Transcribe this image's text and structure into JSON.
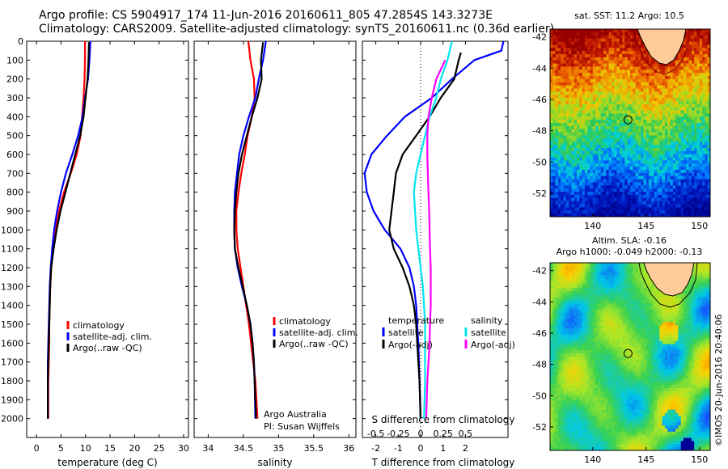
{
  "header": {
    "line1": "Argo profile: CS 5904917_174 11-Jun-2016 20160611_805 47.2854S 143.3273E",
    "line2": "Climatology: CARS2009. Satellite-adjusted climatology: synTS_20160611.nc (0.36d earlier)"
  },
  "colors": {
    "climatology": "#ff0000",
    "satellite": "#0000ff",
    "argo": "#000000",
    "salinity": "#00e5ee",
    "salinity_argo": "#ff00ff"
  },
  "annotations": {
    "argo_australia": "Argo Australia",
    "pi": "PI: Susan Wijffels",
    "imos": "©IMOS 20-Jun-2016 20:40:06",
    "sst_title": "sat. SST: 11.2 Argo: 10.5",
    "sla_title1": "Altim. SLA: -0.16",
    "sla_title2": "Argo h1000: -0.049 h2000: -0.13"
  },
  "chart_data": [
    {
      "type": "line",
      "xlabel": "temperature (deg C)",
      "ylim": [
        2100,
        0
      ],
      "xlim": [
        -2,
        31
      ],
      "xticks": [
        "0",
        "5",
        "10",
        "15",
        "20",
        "25",
        "30"
      ],
      "yticks": [
        "0",
        "100",
        "200",
        "300",
        "400",
        "500",
        "600",
        "700",
        "800",
        "900",
        "1000",
        "1100",
        "1200",
        "1300",
        "1400",
        "1500",
        "1600",
        "1700",
        "1800",
        "1900",
        "2000"
      ],
      "legend": [
        "climatology",
        "satellite-adj. clim.",
        "Argo(..raw -QC)"
      ],
      "series": [
        {
          "name": "climatology",
          "color": "#ff0000",
          "x": [
            9.9,
            9.9,
            9.8,
            9.6,
            9.3,
            9.0,
            8.2,
            7.0,
            5.6,
            4.6,
            3.9,
            3.4,
            3.0,
            2.8,
            2.7,
            2.6,
            2.6,
            2.5,
            2.4,
            2.4
          ],
          "y": [
            0,
            100,
            200,
            300,
            400,
            500,
            600,
            700,
            800,
            900,
            1000,
            1100,
            1200,
            1300,
            1400,
            1500,
            1600,
            1700,
            1800,
            2000
          ]
        },
        {
          "name": "satellite-adj. clim.",
          "color": "#0000ff",
          "x": [
            11.0,
            10.8,
            10.5,
            9.9,
            9.4,
            8.5,
            7.3,
            6.0,
            5.0,
            4.2,
            3.6,
            3.2,
            2.9,
            2.7,
            2.6,
            2.5,
            2.4,
            2.3,
            2.3,
            2.3
          ],
          "y": [
            0,
            100,
            200,
            300,
            400,
            500,
            600,
            700,
            800,
            900,
            1000,
            1100,
            1200,
            1300,
            1400,
            1500,
            1600,
            1700,
            1800,
            2000
          ]
        },
        {
          "name": "Argo(..raw -QC)",
          "color": "#000000",
          "x": [
            10.7,
            10.6,
            10.4,
            10.0,
            9.6,
            8.9,
            7.9,
            6.9,
            5.9,
            4.9,
            4.1,
            3.5,
            3.0,
            2.8,
            2.7,
            2.6,
            2.5,
            2.4,
            2.3,
            2.3
          ],
          "y": [
            5,
            100,
            200,
            300,
            400,
            500,
            600,
            700,
            800,
            900,
            1000,
            1100,
            1200,
            1300,
            1400,
            1500,
            1600,
            1700,
            1800,
            2000
          ]
        }
      ]
    },
    {
      "type": "line",
      "xlabel": "salinity",
      "ylim": [
        2100,
        0
      ],
      "xlim": [
        33.8,
        36.1
      ],
      "xticks": [
        "34",
        "34.5",
        "35",
        "35.5",
        "36"
      ],
      "legend": [
        "climatology",
        "satellite-adj. clim.",
        "Argo(..raw -QC)"
      ],
      "series": [
        {
          "name": "climatology",
          "color": "#ff0000",
          "x": [
            34.57,
            34.6,
            34.65,
            34.66,
            34.62,
            34.56,
            34.52,
            34.47,
            34.43,
            34.4,
            34.4,
            34.42,
            34.46,
            34.5,
            34.54,
            34.58,
            34.61,
            34.64,
            34.67,
            34.7
          ],
          "y": [
            0,
            100,
            200,
            300,
            400,
            500,
            600,
            700,
            800,
            900,
            1000,
            1100,
            1200,
            1300,
            1400,
            1500,
            1600,
            1700,
            1800,
            2000
          ]
        },
        {
          "name": "satellite-adj. clim.",
          "color": "#0000ff",
          "x": [
            34.82,
            34.78,
            34.72,
            34.67,
            34.58,
            34.5,
            34.44,
            34.41,
            34.38,
            34.37,
            34.37,
            34.38,
            34.42,
            34.48,
            34.55,
            34.6,
            34.63,
            34.65,
            34.66,
            34.67
          ],
          "y": [
            0,
            100,
            200,
            300,
            400,
            500,
            600,
            700,
            800,
            900,
            1000,
            1100,
            1200,
            1300,
            1400,
            1500,
            1600,
            1700,
            1800,
            2000
          ]
        },
        {
          "name": "Argo(..raw -QC)",
          "color": "#000000",
          "x": [
            34.78,
            34.75,
            34.76,
            34.7,
            34.62,
            34.55,
            34.48,
            34.43,
            34.4,
            34.38,
            34.37,
            34.38,
            34.43,
            34.49,
            34.55,
            34.6,
            34.63,
            34.65,
            34.66,
            34.68
          ],
          "y": [
            5,
            100,
            200,
            300,
            400,
            500,
            600,
            700,
            800,
            900,
            1000,
            1100,
            1200,
            1300,
            1400,
            1500,
            1600,
            1700,
            1800,
            2000
          ]
        }
      ]
    },
    {
      "type": "line",
      "xlabel": "T difference from climatology",
      "title_top": "S difference from climatology",
      "ylim": [
        2100,
        0
      ],
      "xlim": [
        -2.6,
        3.9
      ],
      "xticks": [
        "-2",
        "-1",
        "0",
        "1",
        "2"
      ],
      "xticks_top": [
        "-0.5",
        "-0.25",
        "0",
        "0.25",
        "0.5"
      ],
      "legend_temperature": [
        "temperature",
        "satellite",
        "Argo(-adj)"
      ],
      "legend_salinity": [
        "salinity",
        "satellite",
        "Argo(-adj)"
      ],
      "series": [
        {
          "name": "satellite",
          "color": "#0000ff",
          "x": [
            3.7,
            3.6,
            2.4,
            1.4,
            0.5,
            -0.7,
            -1.5,
            -2.2,
            -2.5,
            -2.4,
            -2.1,
            -1.6,
            -0.9,
            -0.5,
            -0.3,
            -0.2,
            -0.15,
            -0.1,
            -0.05,
            0
          ],
          "y": [
            0,
            50,
            100,
            200,
            300,
            400,
            500,
            600,
            700,
            800,
            900,
            1000,
            1100,
            1200,
            1300,
            1400,
            1500,
            1600,
            1800,
            2000
          ]
        },
        {
          "name": "Argo(-adj)",
          "color": "#000000",
          "x": [
            1.8,
            1.7,
            1.5,
            0.9,
            0.4,
            -0.2,
            -0.8,
            -1.1,
            -1.2,
            -1.3,
            -1.4,
            -1.2,
            -0.8,
            -0.5,
            -0.3,
            -0.2,
            -0.15,
            -0.1,
            -0.05,
            0
          ],
          "y": [
            60,
            100,
            200,
            300,
            400,
            500,
            600,
            700,
            800,
            900,
            1000,
            1100,
            1200,
            1300,
            1400,
            1500,
            1600,
            1700,
            1800,
            2000
          ]
        },
        {
          "name": "satellite",
          "color": "#00e5ee",
          "x": [
            1.4,
            1.2,
            0.9,
            0.7,
            0.4,
            0.2,
            0,
            -0.2,
            -0.3,
            -0.25,
            -0.2,
            -0.1,
            0,
            0.1,
            0.15,
            0.2,
            0.2,
            0.2,
            0.2,
            0.15
          ],
          "y": [
            0,
            100,
            200,
            300,
            400,
            500,
            600,
            700,
            800,
            900,
            1000,
            1100,
            1200,
            1300,
            1400,
            1500,
            1600,
            1700,
            1800,
            2000
          ]
        },
        {
          "name": "Argo(-adj)",
          "color": "#ff00ff",
          "x": [
            1.1,
            0.9,
            0.7,
            0.5,
            0.35,
            0.3,
            0.3,
            0.32,
            0.35,
            0.38,
            0.4,
            0.42,
            0.45,
            0.45,
            0.45,
            0.42,
            0.4,
            0.35,
            0.3,
            0.25
          ],
          "y": [
            100,
            150,
            200,
            300,
            400,
            500,
            600,
            700,
            800,
            900,
            1000,
            1100,
            1200,
            1300,
            1400,
            1500,
            1600,
            1700,
            1800,
            2000
          ]
        }
      ]
    },
    {
      "type": "heatmap",
      "title": "sat. SST: 11.2 Argo: 10.5",
      "xlim": [
        136,
        151
      ],
      "ylim": [
        -53.5,
        -41.5
      ],
      "xticks": [
        "140",
        "145",
        "150"
      ],
      "yticks": [
        "-42",
        "-44",
        "-46",
        "-48",
        "-50",
        "-52"
      ],
      "marker": {
        "lon": 143.3,
        "lat": -47.3
      }
    },
    {
      "type": "heatmap",
      "title": "Altim. SLA: -0.16",
      "subtitle": "Argo h1000: -0.049 h2000: -0.13",
      "xlim": [
        136,
        151
      ],
      "ylim": [
        -53.5,
        -41.5
      ],
      "xticks": [
        "140",
        "145",
        "150"
      ],
      "yticks": [
        "-42",
        "-44",
        "-46",
        "-48",
        "-50",
        "-52"
      ],
      "marker": {
        "lon": 143.3,
        "lat": -47.3
      }
    }
  ]
}
